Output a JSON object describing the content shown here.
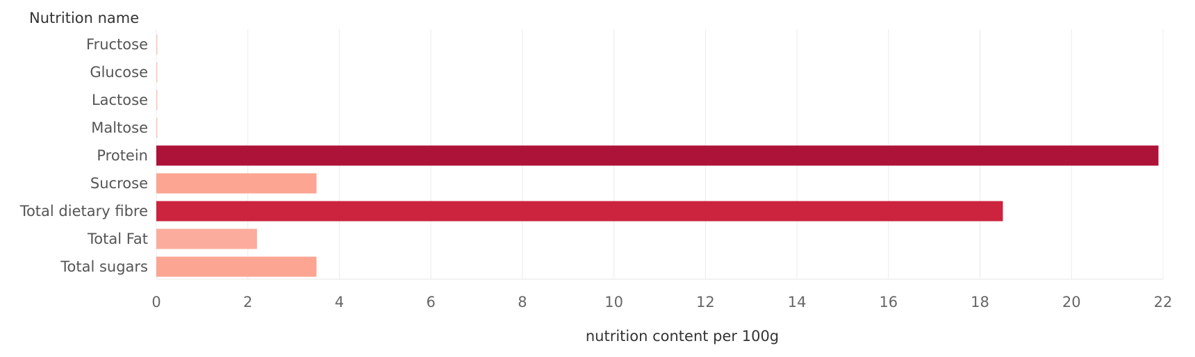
{
  "chart_data": {
    "type": "bar",
    "orientation": "horizontal",
    "ylabel": "Nutrition name",
    "xlabel": "nutrition content per 100g",
    "xlim": [
      0,
      22
    ],
    "x_ticks": [
      0,
      2,
      4,
      6,
      8,
      10,
      12,
      14,
      16,
      18,
      20,
      22
    ],
    "grid": true,
    "categories": [
      "Fructose",
      "Glucose",
      "Lactose",
      "Maltose",
      "Protein",
      "Sucrose",
      "Total dietary fibre",
      "Total Fat",
      "Total sugars"
    ],
    "values": [
      0,
      0,
      0,
      0,
      21.9,
      3.5,
      18.5,
      2.2,
      3.5
    ],
    "colors": [
      "#f7c7c0",
      "#f7c7c0",
      "#f7c7c0",
      "#f7c7c0",
      "#ad1339",
      "#fba592",
      "#cc233e",
      "#fcac9c",
      "#fba592"
    ]
  }
}
